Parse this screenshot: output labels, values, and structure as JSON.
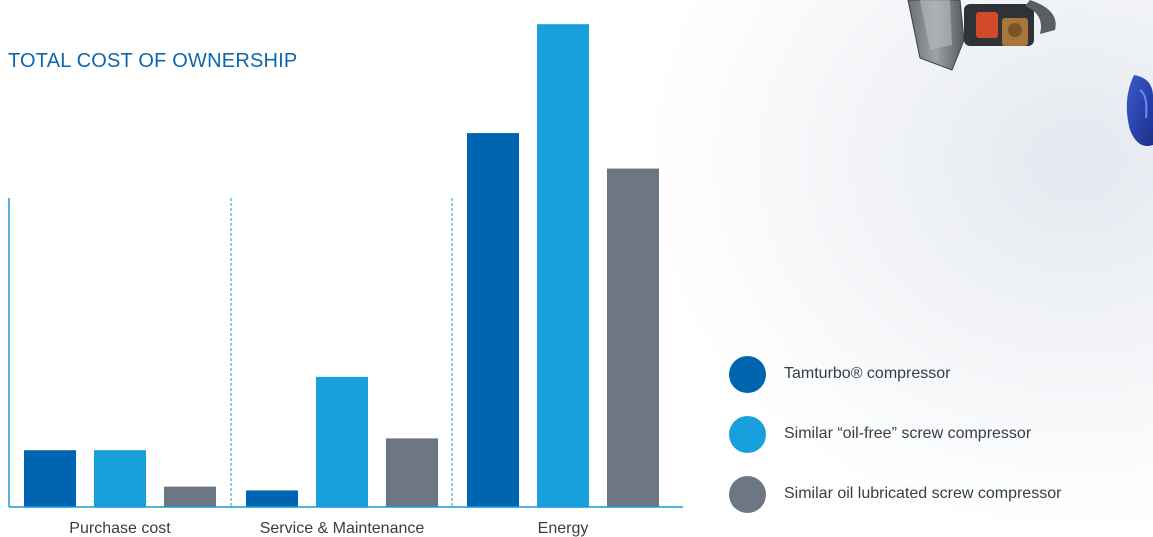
{
  "colors": {
    "title": "#0a67b1",
    "axis": "#1a9ad6",
    "divider": "#1a9ad6",
    "text": "#333f48"
  },
  "chart_data": {
    "type": "bar",
    "title": "TOTAL COST OF OWNERSHIP",
    "xlabel": "",
    "ylabel": "",
    "categories": [
      "Purchase cost",
      "Service & Maintenance",
      "Energy"
    ],
    "series": [
      {
        "name": "Tamturbo® compressor",
        "color": "#0065b0",
        "values": [
          12,
          3.5,
          79
        ]
      },
      {
        "name": "Similar “oil-free” screw compressor",
        "color": "#17a0dc",
        "values": [
          12,
          27.5,
          102
        ]
      },
      {
        "name": "Similar oil lubricated screw compressor",
        "color": "#6d7783",
        "values": [
          4.3,
          14.5,
          71.5
        ]
      }
    ],
    "ylim": [
      0,
      105
    ],
    "grid": false,
    "legend_position": "right"
  },
  "legend": {
    "icon": "circle-swatch"
  }
}
